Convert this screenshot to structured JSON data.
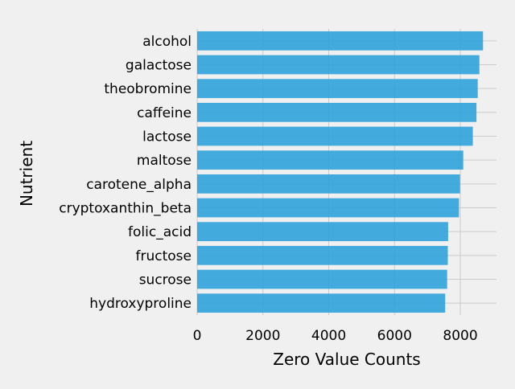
{
  "chart_data": {
    "type": "bar",
    "orientation": "horizontal",
    "title": "",
    "xlabel": "Zero Value Counts",
    "ylabel": "Nutrient",
    "categories": [
      "alcohol",
      "galactose",
      "theobromine",
      "caffeine",
      "lactose",
      "maltose",
      "carotene_alpha",
      "cryptoxanthin_beta",
      "folic_acid",
      "fructose",
      "sucrose",
      "hydroxyproline"
    ],
    "values": [
      8690,
      8580,
      8530,
      8490,
      8380,
      8090,
      7990,
      7960,
      7630,
      7620,
      7600,
      7540
    ],
    "xlim": [
      0,
      9100
    ],
    "xticks": [
      0,
      2000,
      4000,
      6000,
      8000
    ],
    "xtick_labels": [
      "0",
      "2000",
      "4000",
      "6000",
      "8000"
    ],
    "grid": true,
    "bar_color": "#30a2da",
    "background_color": "#f0f0f0",
    "grid_color": "#cbcbcb"
  }
}
